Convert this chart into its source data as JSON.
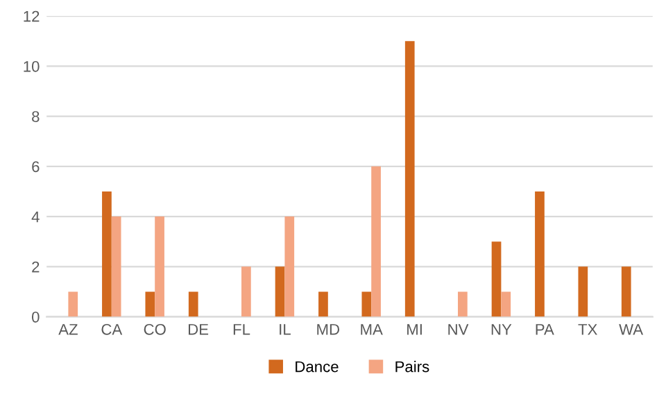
{
  "chart_data": {
    "type": "bar",
    "categories": [
      "AZ",
      "CA",
      "CO",
      "DE",
      "FL",
      "IL",
      "MD",
      "MA",
      "MI",
      "NV",
      "NY",
      "PA",
      "TX",
      "WA"
    ],
    "series": [
      {
        "name": "Dance",
        "color": "#d2691e",
        "values": [
          0,
          5,
          1,
          1,
          0,
          2,
          1,
          1,
          11,
          0,
          3,
          5,
          2,
          2
        ]
      },
      {
        "name": "Pairs",
        "color": "#f4a582",
        "values": [
          1,
          4,
          4,
          0,
          2,
          4,
          0,
          6,
          0,
          1,
          1,
          0,
          0,
          0
        ]
      }
    ],
    "ylim": [
      0,
      12
    ],
    "yticks": [
      0,
      2,
      4,
      6,
      8,
      10,
      12
    ],
    "grid": "y",
    "legend": "bottom"
  }
}
